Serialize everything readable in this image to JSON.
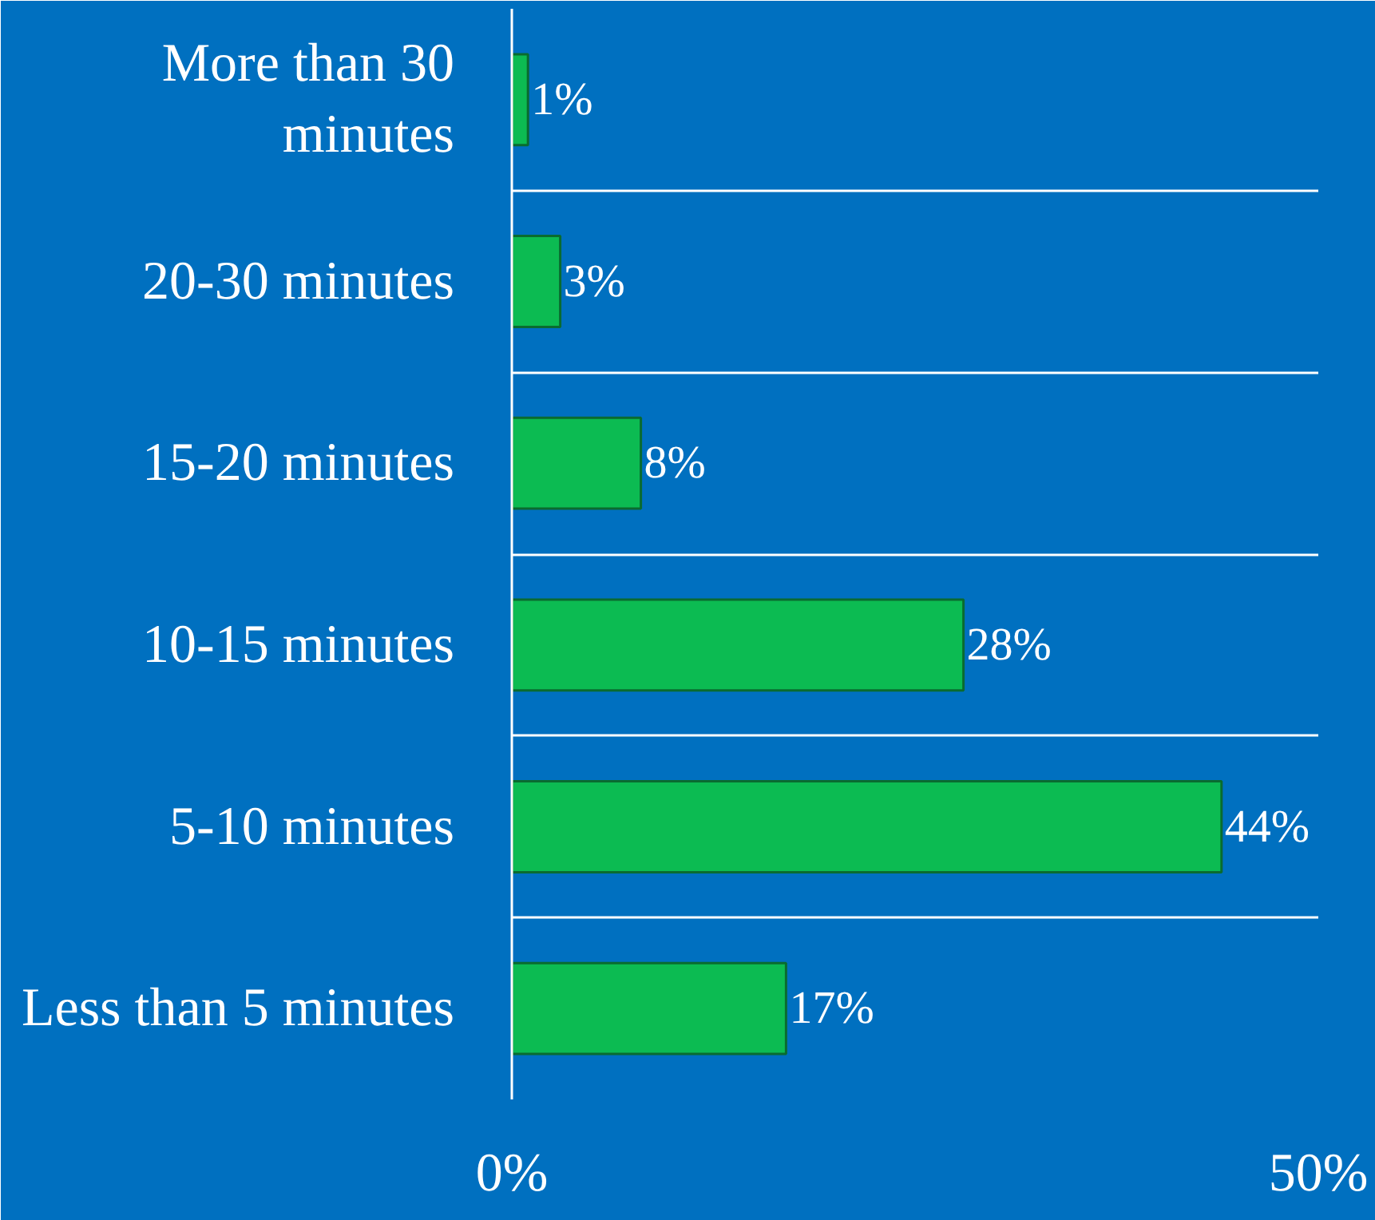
{
  "chart_data": {
    "type": "bar",
    "orientation": "horizontal",
    "categories": [
      "More than 30 minutes",
      "20-30 minutes",
      "15-20 minutes",
      "10-15 minutes",
      "5-10 minutes",
      "Less than 5 minutes"
    ],
    "values": [
      1,
      3,
      8,
      28,
      44,
      17
    ],
    "value_labels": [
      "1%",
      "3%",
      "8%",
      "28%",
      "44%",
      "17%"
    ],
    "color": "#0cbb52",
    "xlim": [
      0,
      50
    ],
    "xticks": [
      {
        "value": 0,
        "label": "0%"
      },
      {
        "value": 50,
        "label": "50%"
      }
    ],
    "grid": true
  }
}
